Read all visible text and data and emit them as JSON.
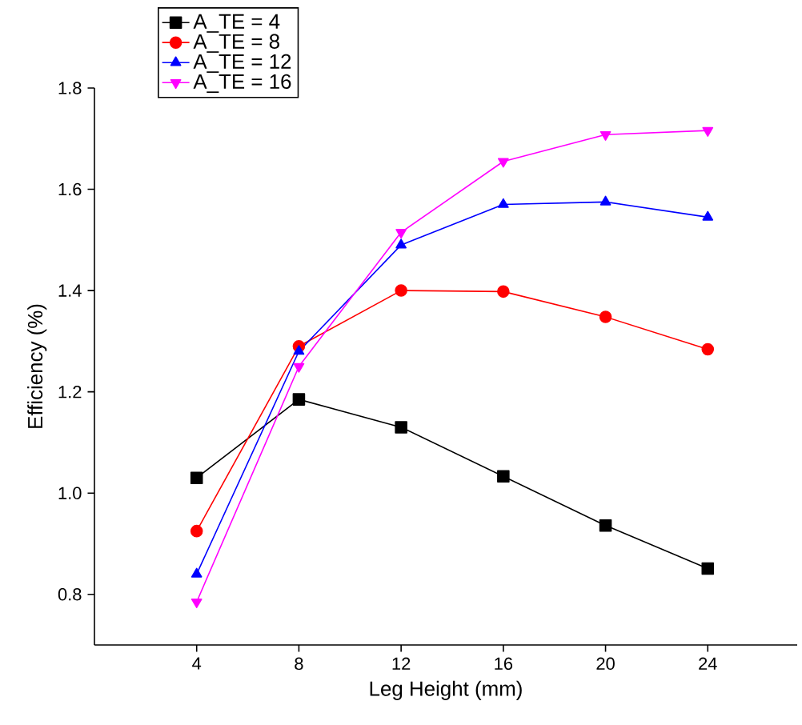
{
  "chart_data": {
    "type": "line",
    "xlabel": "Leg Height (mm)",
    "ylabel": "Efficiency (%)",
    "x": [
      4,
      8,
      12,
      16,
      20,
      24
    ],
    "series": [
      {
        "name": "A_TE = 4",
        "color": "#000000",
        "marker": "square",
        "values": [
          1.03,
          1.185,
          1.13,
          1.033,
          0.936,
          0.851
        ]
      },
      {
        "name": "A_TE = 8",
        "color": "#ff0000",
        "marker": "circle",
        "values": [
          0.925,
          1.29,
          1.4,
          1.398,
          1.348,
          1.284
        ]
      },
      {
        "name": "A_TE = 12",
        "color": "#0000ff",
        "marker": "triangle",
        "values": [
          0.84,
          1.28,
          1.49,
          1.57,
          1.575,
          1.545
        ]
      },
      {
        "name": "A_TE = 16",
        "color": "#ff00ff",
        "marker": "triangle-down",
        "values": [
          0.785,
          1.25,
          1.515,
          1.655,
          1.708,
          1.716
        ]
      }
    ],
    "xlim": [
      0,
      27.5
    ],
    "ylim": [
      0.7,
      1.8
    ],
    "xticks": [
      4,
      8,
      12,
      16,
      20,
      24
    ],
    "yticks": [
      {
        "value": 0.8,
        "label": "0.8"
      },
      {
        "value": 1.0,
        "label": "1.0"
      },
      {
        "value": 1.2,
        "label": "1.2"
      },
      {
        "value": 1.4,
        "label": "1.4"
      },
      {
        "value": 1.6,
        "label": "1.6"
      },
      {
        "value": 1.8,
        "label": "1.8"
      }
    ],
    "grid": false,
    "legend": "top left",
    "line_style": "solid"
  }
}
